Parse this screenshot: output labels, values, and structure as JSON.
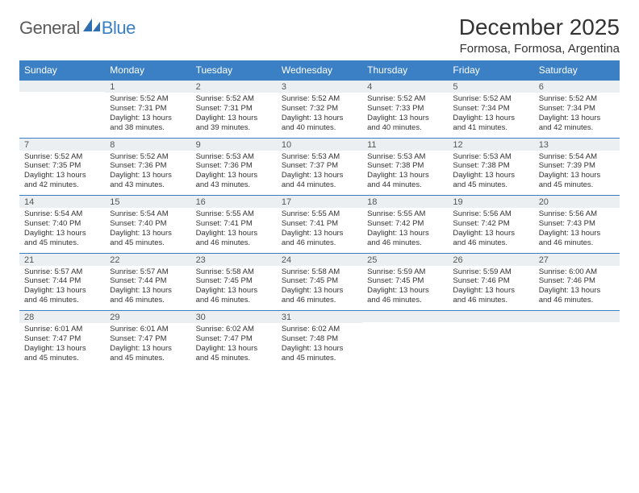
{
  "brand": {
    "general": "General",
    "blue": "Blue"
  },
  "title": "December 2025",
  "location": "Formosa, Formosa, Argentina",
  "colors": {
    "header_bg": "#3b7fc4",
    "header_text": "#ffffff",
    "daynum_bg": "#eceff1",
    "cell_border": "#3b7fc4"
  },
  "day_headers": [
    "Sunday",
    "Monday",
    "Tuesday",
    "Wednesday",
    "Thursday",
    "Friday",
    "Saturday"
  ],
  "weeks": [
    [
      {
        "n": "",
        "sr": "",
        "ss": "",
        "dl": ""
      },
      {
        "n": "1",
        "sr": "5:52 AM",
        "ss": "7:31 PM",
        "dl": "13 hours and 38 minutes."
      },
      {
        "n": "2",
        "sr": "5:52 AM",
        "ss": "7:31 PM",
        "dl": "13 hours and 39 minutes."
      },
      {
        "n": "3",
        "sr": "5:52 AM",
        "ss": "7:32 PM",
        "dl": "13 hours and 40 minutes."
      },
      {
        "n": "4",
        "sr": "5:52 AM",
        "ss": "7:33 PM",
        "dl": "13 hours and 40 minutes."
      },
      {
        "n": "5",
        "sr": "5:52 AM",
        "ss": "7:34 PM",
        "dl": "13 hours and 41 minutes."
      },
      {
        "n": "6",
        "sr": "5:52 AM",
        "ss": "7:34 PM",
        "dl": "13 hours and 42 minutes."
      }
    ],
    [
      {
        "n": "7",
        "sr": "5:52 AM",
        "ss": "7:35 PM",
        "dl": "13 hours and 42 minutes."
      },
      {
        "n": "8",
        "sr": "5:52 AM",
        "ss": "7:36 PM",
        "dl": "13 hours and 43 minutes."
      },
      {
        "n": "9",
        "sr": "5:53 AM",
        "ss": "7:36 PM",
        "dl": "13 hours and 43 minutes."
      },
      {
        "n": "10",
        "sr": "5:53 AM",
        "ss": "7:37 PM",
        "dl": "13 hours and 44 minutes."
      },
      {
        "n": "11",
        "sr": "5:53 AM",
        "ss": "7:38 PM",
        "dl": "13 hours and 44 minutes."
      },
      {
        "n": "12",
        "sr": "5:53 AM",
        "ss": "7:38 PM",
        "dl": "13 hours and 45 minutes."
      },
      {
        "n": "13",
        "sr": "5:54 AM",
        "ss": "7:39 PM",
        "dl": "13 hours and 45 minutes."
      }
    ],
    [
      {
        "n": "14",
        "sr": "5:54 AM",
        "ss": "7:40 PM",
        "dl": "13 hours and 45 minutes."
      },
      {
        "n": "15",
        "sr": "5:54 AM",
        "ss": "7:40 PM",
        "dl": "13 hours and 45 minutes."
      },
      {
        "n": "16",
        "sr": "5:55 AM",
        "ss": "7:41 PM",
        "dl": "13 hours and 46 minutes."
      },
      {
        "n": "17",
        "sr": "5:55 AM",
        "ss": "7:41 PM",
        "dl": "13 hours and 46 minutes."
      },
      {
        "n": "18",
        "sr": "5:55 AM",
        "ss": "7:42 PM",
        "dl": "13 hours and 46 minutes."
      },
      {
        "n": "19",
        "sr": "5:56 AM",
        "ss": "7:42 PM",
        "dl": "13 hours and 46 minutes."
      },
      {
        "n": "20",
        "sr": "5:56 AM",
        "ss": "7:43 PM",
        "dl": "13 hours and 46 minutes."
      }
    ],
    [
      {
        "n": "21",
        "sr": "5:57 AM",
        "ss": "7:44 PM",
        "dl": "13 hours and 46 minutes."
      },
      {
        "n": "22",
        "sr": "5:57 AM",
        "ss": "7:44 PM",
        "dl": "13 hours and 46 minutes."
      },
      {
        "n": "23",
        "sr": "5:58 AM",
        "ss": "7:45 PM",
        "dl": "13 hours and 46 minutes."
      },
      {
        "n": "24",
        "sr": "5:58 AM",
        "ss": "7:45 PM",
        "dl": "13 hours and 46 minutes."
      },
      {
        "n": "25",
        "sr": "5:59 AM",
        "ss": "7:45 PM",
        "dl": "13 hours and 46 minutes."
      },
      {
        "n": "26",
        "sr": "5:59 AM",
        "ss": "7:46 PM",
        "dl": "13 hours and 46 minutes."
      },
      {
        "n": "27",
        "sr": "6:00 AM",
        "ss": "7:46 PM",
        "dl": "13 hours and 46 minutes."
      }
    ],
    [
      {
        "n": "28",
        "sr": "6:01 AM",
        "ss": "7:47 PM",
        "dl": "13 hours and 45 minutes."
      },
      {
        "n": "29",
        "sr": "6:01 AM",
        "ss": "7:47 PM",
        "dl": "13 hours and 45 minutes."
      },
      {
        "n": "30",
        "sr": "6:02 AM",
        "ss": "7:47 PM",
        "dl": "13 hours and 45 minutes."
      },
      {
        "n": "31",
        "sr": "6:02 AM",
        "ss": "7:48 PM",
        "dl": "13 hours and 45 minutes."
      },
      {
        "n": "",
        "sr": "",
        "ss": "",
        "dl": ""
      },
      {
        "n": "",
        "sr": "",
        "ss": "",
        "dl": ""
      },
      {
        "n": "",
        "sr": "",
        "ss": "",
        "dl": ""
      }
    ]
  ],
  "labels": {
    "sunrise": "Sunrise: ",
    "sunset": "Sunset: ",
    "daylight": "Daylight: "
  }
}
